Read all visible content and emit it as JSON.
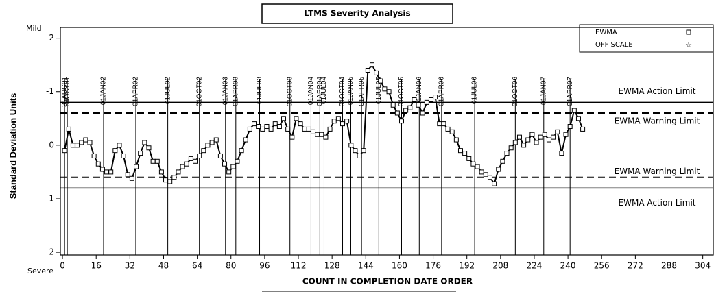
{
  "chart_data": {
    "type": "line",
    "title": "LTMS Severity Analysis",
    "x_label": "COUNT IN COMPLETION DATE ORDER",
    "y_label": "Standard Deviation Units",
    "y_top_label": "Mild",
    "y_bottom_label": "Severe",
    "xlim": [
      -1,
      309
    ],
    "ylim": [
      -2.2,
      2.05
    ],
    "y_inverted": true,
    "xticks": [
      0,
      16,
      32,
      48,
      64,
      80,
      96,
      112,
      128,
      144,
      160,
      176,
      192,
      208,
      224,
      240,
      256,
      272,
      288,
      304
    ],
    "yticks": [
      -2,
      -1,
      0,
      1,
      2
    ],
    "legend": [
      "EWMA",
      "OFF SCALE"
    ],
    "series": [
      {
        "name": "EWMA",
        "color": "#000000",
        "x": [
          1,
          3,
          5,
          7,
          9,
          11,
          13,
          15,
          17,
          19,
          21,
          23,
          25,
          27,
          29,
          31,
          33,
          35,
          37,
          39,
          41,
          43,
          45,
          47,
          49,
          51,
          53,
          55,
          57,
          59,
          61,
          63,
          65,
          67,
          69,
          71,
          73,
          75,
          77,
          79,
          81,
          83,
          85,
          87,
          89,
          91,
          93,
          95,
          97,
          99,
          101,
          103,
          105,
          107,
          109,
          111,
          113,
          115,
          117,
          119,
          121,
          123,
          125,
          127,
          129,
          131,
          133,
          135,
          137,
          139,
          141,
          143,
          145,
          147,
          149,
          151,
          153,
          155,
          157,
          159,
          161,
          163,
          165,
          167,
          169,
          171,
          173,
          175,
          177,
          179,
          181,
          183,
          185,
          187,
          189,
          191,
          193,
          195,
          197,
          199,
          201,
          203,
          205,
          207,
          209,
          211,
          213,
          215,
          217,
          219,
          221,
          223,
          225,
          227,
          229,
          231,
          233,
          235,
          237,
          239,
          241,
          243,
          245,
          247
        ],
        "values": [
          0.1,
          -0.3,
          0,
          0,
          -0.05,
          -0.1,
          -0.05,
          0.2,
          0.35,
          0.45,
          0.5,
          0.5,
          0.1,
          0,
          0.2,
          0.55,
          0.62,
          0.4,
          0.15,
          -0.05,
          0.05,
          0.3,
          0.3,
          0.5,
          0.65,
          0.68,
          0.6,
          0.5,
          0.4,
          0.35,
          0.25,
          0.3,
          0.2,
          0.1,
          0,
          -0.05,
          -0.1,
          0.2,
          0.35,
          0.5,
          0.4,
          0.3,
          0.1,
          -0.1,
          -0.3,
          -0.4,
          -0.35,
          -0.3,
          -0.35,
          -0.3,
          -0.4,
          -0.35,
          -0.5,
          -0.3,
          -0.15,
          -0.5,
          -0.4,
          -0.3,
          -0.3,
          -0.25,
          -0.2,
          -0.2,
          -0.15,
          -0.3,
          -0.45,
          -0.5,
          -0.4,
          -0.45,
          0,
          0.1,
          0.2,
          0.1,
          -1.4,
          -1.5,
          -1.35,
          -1.2,
          -1.05,
          -1.0,
          -0.75,
          -0.6,
          -0.45,
          -0.65,
          -0.7,
          -0.85,
          -0.75,
          -0.6,
          -0.8,
          -0.85,
          -0.9,
          -0.4,
          -0.4,
          -0.3,
          -0.25,
          -0.1,
          0.1,
          0.15,
          0.25,
          0.35,
          0.4,
          0.5,
          0.55,
          0.6,
          0.72,
          0.45,
          0.3,
          0.15,
          0.05,
          -0.05,
          -0.15,
          0,
          -0.1,
          -0.2,
          -0.05,
          -0.15,
          -0.2,
          -0.1,
          -0.15,
          -0.25,
          0.15,
          -0.2,
          -0.35,
          -0.65,
          -0.5,
          -0.3
        ]
      }
    ],
    "reference_lines": [
      {
        "value": -0.8,
        "label": "EWMA Action Limit",
        "dashed": false
      },
      {
        "value": -0.6,
        "label": "EWMA Warning Limit",
        "dashed": true
      },
      {
        "value": 0.6,
        "label": "EWMA Warning Limit",
        "dashed": true
      },
      {
        "value": 0.8,
        "label": "EWMA Action Limit",
        "dashed": false
      }
    ],
    "date_lines": [
      {
        "value": 1,
        "label": "31AUG01"
      },
      {
        "value": 2.3,
        "label": "04OCT01"
      },
      {
        "value": 19.5,
        "label": "01JAN02"
      },
      {
        "value": 34.8,
        "label": "01APR02"
      },
      {
        "value": 50,
        "label": "01JUL02"
      },
      {
        "value": 65,
        "label": "01OCT02"
      },
      {
        "value": 77.4,
        "label": "01JAN03"
      },
      {
        "value": 82.3,
        "label": "01APR03"
      },
      {
        "value": 93.6,
        "label": "01JUL03"
      },
      {
        "value": 108,
        "label": "01OCT03"
      },
      {
        "value": 118,
        "label": "01JAN04"
      },
      {
        "value": 122.2,
        "label": "01APR04"
      },
      {
        "value": 124.2,
        "label": "01JUL04"
      },
      {
        "value": 133,
        "label": "01OCT04"
      },
      {
        "value": 136.9,
        "label": "01JAN05"
      },
      {
        "value": 142,
        "label": "01APR05"
      },
      {
        "value": 150.2,
        "label": "01JUL05"
      },
      {
        "value": 161,
        "label": "01OCT05"
      },
      {
        "value": 169.4,
        "label": "01JAN06"
      },
      {
        "value": 180,
        "label": "01APR06"
      },
      {
        "value": 195.7,
        "label": "01JUL06"
      },
      {
        "value": 215,
        "label": "01OCT06"
      },
      {
        "value": 228.5,
        "label": "01JAN07"
      },
      {
        "value": 241,
        "label": "01APR07"
      }
    ]
  }
}
